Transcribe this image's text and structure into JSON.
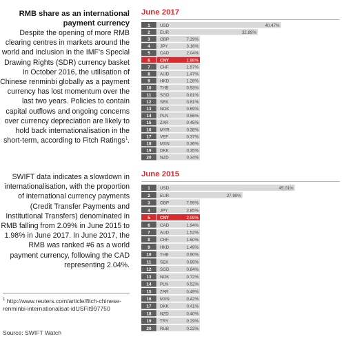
{
  "left": {
    "heading": "RMB share as an international payment currency",
    "paragraph1": "Despite the opening of more RMB clearing centres in markets around the world and inclusion in the IMF's Special Drawing Rights (SDR) currency basket in October 2016, the utilisation of Chinese renminbi globally as a payment currency has lost momentum over the last two years. Policies to contain capital outflows and ongoing concerns over currency depreciation are likely to hold back internationalisation in the short-term, according to Fitch Ratings",
    "footnote_marker": "1",
    "paragraph1_end": ".",
    "paragraph2": "SWIFT data indicates a slowdown in internationalisation, with the proportion of international currency payments (Credit Transfer Payments and Institutional Transfers) denominated in RMB falling from 2.09% in June 2015 to 1.98% in June 2017. In June 2017, the RMB was ranked #6 as a world payment currency, following the CAD representing 2.04%.",
    "footnote_text": "http://www.reuters.com/article/fitch-chinese-renminbi-internationalisat-idUSFit997750",
    "source": "Source: SWIFT Watch"
  },
  "colors": {
    "bar": "#d9d9d9",
    "rank_box": "#5c5c5c",
    "highlight": "#d62b2f",
    "title": "#d62b2f"
  },
  "chart_data": [
    {
      "type": "bar",
      "title": "June 2017",
      "highlight": "CNY",
      "ranks": [
        "1",
        "2",
        "3",
        "4",
        "5",
        "6",
        "7",
        "8",
        "9",
        "10",
        "11",
        "12",
        "13",
        "14",
        "15",
        "16",
        "17",
        "18",
        "19",
        "20"
      ],
      "categories": [
        "USD",
        "EUR",
        "GBP",
        "JPY",
        "CAD",
        "CNY",
        "CHF",
        "AUD",
        "HKD",
        "THB",
        "SGD",
        "SEK",
        "NOK",
        "PLN",
        "ZAR",
        "MYR",
        "VEF",
        "MXN",
        "DKK",
        "NZD"
      ],
      "values": [
        40.47,
        32.89,
        7.29,
        3.16,
        2.04,
        1.98,
        1.57,
        1.47,
        1.28,
        0.93,
        0.81,
        0.81,
        0.69,
        0.56,
        0.45,
        0.38,
        0.37,
        0.36,
        0.35,
        0.34
      ],
      "labels": [
        "40.47%",
        "32.89%",
        "7.29%",
        "3.16%",
        "2.04%",
        "1.98%",
        "1.57%",
        "1.47%",
        "1.28%",
        "0.93%",
        "0.81%",
        "0.81%",
        "0.69%",
        "0.56%",
        "0.45%",
        "0.38%",
        "0.37%",
        "0.36%",
        "0.35%",
        "0.34%"
      ]
    },
    {
      "type": "bar",
      "title": "June 2015",
      "highlight": "CNY",
      "ranks": [
        "1",
        "2",
        "3",
        "4",
        "5",
        "6",
        "7",
        "8",
        "9",
        "10",
        "11",
        "12",
        "13",
        "14",
        "15",
        "16",
        "17",
        "18",
        "19",
        "20"
      ],
      "categories": [
        "USD",
        "EUR",
        "GBP",
        "JPY",
        "CNY",
        "CAD",
        "AUD",
        "CHF",
        "HKD",
        "THB",
        "SEK",
        "SGD",
        "NOK",
        "PLN",
        "ZAR",
        "MXN",
        "DKK",
        "NZD",
        "TRY",
        "RUB"
      ],
      "values": [
        45.01,
        27.9,
        7.99,
        2.85,
        2.09,
        1.94,
        1.52,
        1.5,
        1.49,
        0.9,
        0.89,
        0.84,
        0.72,
        0.52,
        0.49,
        0.42,
        0.41,
        0.4,
        0.29,
        0.22
      ],
      "labels": [
        "45.01%",
        "27.90%",
        "7.99%",
        "2.85%",
        "2.09%",
        "1.94%",
        "1.52%",
        "1.50%",
        "1.49%",
        "0.90%",
        "0.89%",
        "0.84%",
        "0.72%",
        "0.52%",
        "0.49%",
        "0.42%",
        "0.41%",
        "0.40%",
        "0.29%",
        "0.22%"
      ]
    }
  ]
}
